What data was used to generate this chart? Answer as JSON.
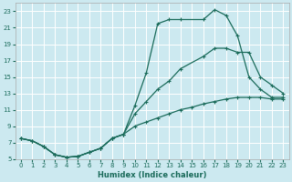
{
  "xlabel": "Humidex (Indice chaleur)",
  "bg_color": "#cce9f0",
  "grid_color": "#ffffff",
  "line_color": "#1a6b5a",
  "xlim": [
    -0.5,
    23.5
  ],
  "ylim": [
    5,
    24
  ],
  "xticks": [
    0,
    1,
    2,
    3,
    4,
    5,
    6,
    7,
    8,
    9,
    10,
    11,
    12,
    13,
    14,
    15,
    16,
    17,
    18,
    19,
    20,
    21,
    22,
    23
  ],
  "yticks": [
    5,
    7,
    9,
    11,
    13,
    15,
    17,
    19,
    21,
    23
  ],
  "line1_x": [
    0,
    1,
    2,
    3,
    4,
    5,
    6,
    7,
    8,
    9,
    10,
    11,
    12,
    13,
    14,
    16,
    17,
    18,
    19,
    20,
    21,
    22,
    23
  ],
  "line1_y": [
    7.5,
    7.2,
    6.5,
    5.5,
    5.2,
    5.3,
    5.8,
    6.3,
    7.5,
    8.0,
    11.5,
    15.5,
    21.5,
    22.0,
    22.0,
    22.0,
    23.2,
    22.5,
    20.0,
    15.0,
    13.5,
    12.5,
    12.5
  ],
  "line2_x": [
    0,
    1,
    2,
    3,
    4,
    5,
    6,
    7,
    8,
    9,
    10,
    11,
    12,
    13,
    14,
    16,
    17,
    18,
    19,
    20,
    21,
    22,
    23
  ],
  "line2_y": [
    7.5,
    7.2,
    6.5,
    5.5,
    5.2,
    5.3,
    5.8,
    6.3,
    7.5,
    8.0,
    10.5,
    12.0,
    13.5,
    14.5,
    16.0,
    17.5,
    18.5,
    18.5,
    18.0,
    18.0,
    15.0,
    14.0,
    13.0
  ],
  "line3_x": [
    0,
    1,
    2,
    3,
    4,
    5,
    6,
    7,
    8,
    9,
    10,
    11,
    12,
    13,
    14,
    15,
    16,
    17,
    18,
    19,
    20,
    21,
    22,
    23
  ],
  "line3_y": [
    7.5,
    7.2,
    6.5,
    5.5,
    5.2,
    5.3,
    5.8,
    6.3,
    7.5,
    8.0,
    9.0,
    9.5,
    10.0,
    10.5,
    11.0,
    11.3,
    11.7,
    12.0,
    12.3,
    12.5,
    12.5,
    12.5,
    12.3,
    12.3
  ]
}
